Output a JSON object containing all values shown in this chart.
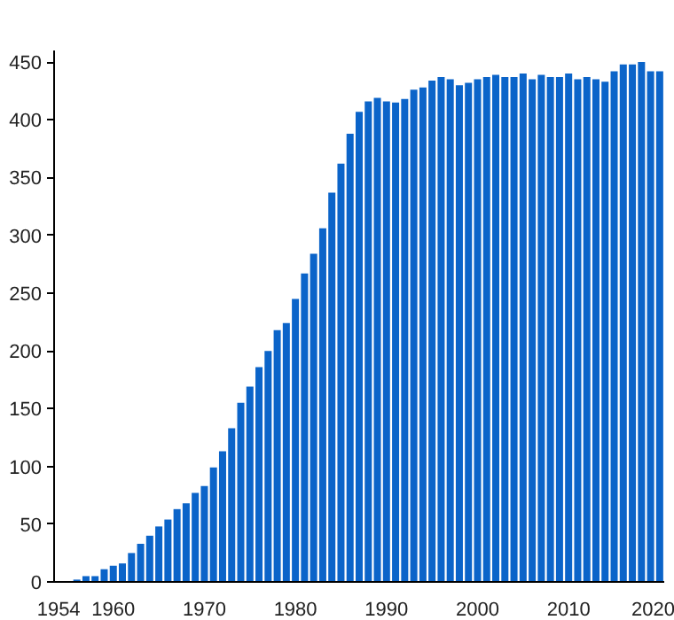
{
  "chart_data": {
    "type": "bar",
    "color": "#0b64c9",
    "categories": [
      "1954",
      null,
      null,
      null,
      null,
      null,
      "1960",
      null,
      null,
      null,
      null,
      null,
      null,
      null,
      null,
      null,
      "1970",
      null,
      null,
      null,
      null,
      null,
      null,
      null,
      null,
      null,
      "1980",
      null,
      null,
      null,
      null,
      null,
      null,
      null,
      null,
      null,
      "1990",
      null,
      null,
      null,
      null,
      null,
      null,
      null,
      null,
      null,
      "2000",
      null,
      null,
      null,
      null,
      null,
      null,
      null,
      null,
      null,
      "2010",
      null,
      null,
      null,
      null,
      null,
      null,
      null,
      null,
      null,
      "2020"
    ],
    "values": [
      null,
      null,
      2,
      5,
      5,
      11,
      14,
      16,
      25,
      33,
      40,
      48,
      54,
      63,
      68,
      77,
      83,
      99,
      113,
      133,
      155,
      169,
      186,
      200,
      218,
      224,
      245,
      267,
      284,
      306,
      337,
      362,
      388,
      407,
      416,
      419,
      416,
      415,
      418,
      426,
      428,
      434,
      437,
      435,
      430,
      432,
      435,
      437,
      439,
      437,
      437,
      440,
      435,
      439,
      437,
      437,
      440,
      435,
      437,
      435,
      433,
      442,
      448,
      448,
      450,
      442,
      442
    ],
    "ylim": [
      0,
      460
    ],
    "yticks": [
      0,
      50,
      100,
      150,
      200,
      250,
      300,
      350,
      400,
      450
    ],
    "grid": false
  }
}
